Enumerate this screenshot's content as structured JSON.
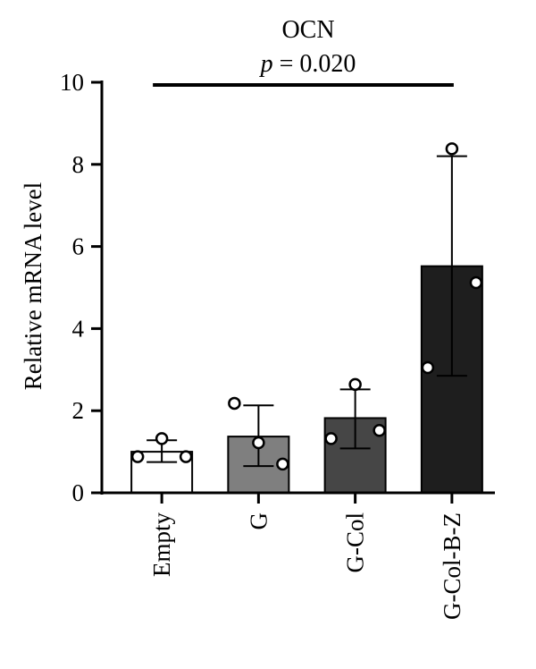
{
  "chart_data": {
    "type": "bar",
    "title": "OCN",
    "annotation": {
      "symbol": "p",
      "text": " = 0.020"
    },
    "ylabel": "Relative mRNA level",
    "xlabel": "",
    "ylim": [
      0,
      10
    ],
    "yticks": [
      0,
      2,
      4,
      6,
      8,
      10
    ],
    "categories": [
      "Empty",
      "G",
      "G-Col",
      "G-Col-B-Z"
    ],
    "values": [
      1.0,
      1.37,
      1.82,
      5.52
    ],
    "error_high": [
      1.28,
      2.13,
      2.52,
      8.2
    ],
    "error_low": [
      0.75,
      0.65,
      1.08,
      2.85
    ],
    "points": [
      [
        0.88,
        1.32,
        0.88
      ],
      [
        2.18,
        1.22,
        0.7
      ],
      [
        1.32,
        2.64,
        1.52
      ],
      [
        3.05,
        8.38,
        5.12
      ]
    ],
    "bar_colors": [
      "#ffffff",
      "#7f7f7f",
      "#464646",
      "#1e1e1e"
    ],
    "significance_bar": {
      "from": "Empty",
      "to": "G-Col-B-Z"
    }
  }
}
